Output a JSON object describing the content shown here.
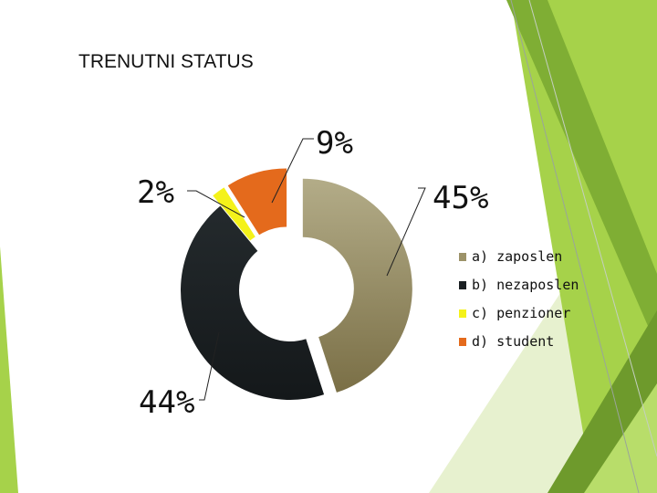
{
  "slide": {
    "title": "TRENUTNI STATUS",
    "theme_colors": {
      "light_green": "#a6d24a",
      "mid_green": "#8cbd3c",
      "dark_green": "#6e9a2c",
      "pale_green": "#dbeaba"
    }
  },
  "chart_data": {
    "type": "pie",
    "variant": "doughnut",
    "title": "",
    "categories": [
      "a) zaposlen",
      "b) nezaposlen",
      "c) penzioner",
      "d) student"
    ],
    "values": [
      45,
      44,
      2,
      9
    ],
    "data_labels": [
      "45%",
      "44%",
      "2%",
      "9%"
    ],
    "colors": [
      "#9c9268",
      "#1a1f22",
      "#f4f21a",
      "#e46a1c"
    ],
    "legend_position": "right"
  }
}
